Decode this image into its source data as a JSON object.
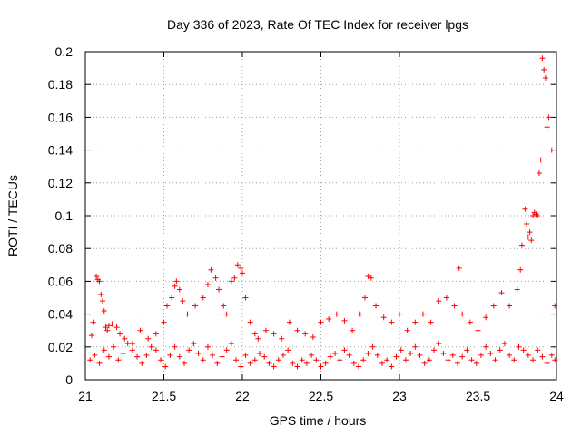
{
  "chart_data": {
    "type": "scatter",
    "title": "Day 336 of 2023, Rate Of TEC Index for receiver lpgs",
    "xlabel": "GPS time / hours",
    "ylabel": "ROTI / TECUs",
    "xlim": [
      21,
      24
    ],
    "ylim": [
      0,
      0.2
    ],
    "x_ticks": [
      "21",
      "21.5",
      "22",
      "22.5",
      "23",
      "23.5",
      "24"
    ],
    "y_ticks": [
      "0",
      "0.02",
      "0.04",
      "0.06",
      "0.08",
      "0.1",
      "0.12",
      "0.14",
      "0.16",
      "0.18",
      "0.2"
    ],
    "grid": true,
    "marker": "+",
    "color": "#ff0000",
    "series": [
      {
        "x": [
          21.04,
          21.05,
          21.07,
          21.08,
          21.09,
          21.1,
          21.11,
          21.12,
          21.13,
          21.14,
          21.15,
          21.17,
          21.2,
          21.22,
          21.25,
          21.3,
          21.35,
          21.4,
          21.45,
          21.5,
          21.52,
          21.55,
          21.57,
          21.58,
          21.6,
          21.62,
          21.65,
          21.7,
          21.75,
          21.78,
          21.8,
          21.83,
          21.85,
          21.88,
          21.9,
          21.93,
          21.95,
          21.97,
          21.99,
          22.0,
          22.02,
          22.05,
          22.08,
          22.1,
          22.15,
          22.2,
          22.25,
          22.3,
          22.35,
          22.4,
          22.45,
          22.5,
          22.55,
          22.6,
          22.65,
          22.7,
          22.75,
          22.78,
          22.8,
          22.82,
          22.85,
          22.9,
          22.95,
          23.0,
          23.05,
          23.1,
          23.15,
          23.2,
          23.25,
          23.3,
          23.35,
          23.38,
          23.4,
          23.45,
          23.5,
          23.55,
          23.6,
          23.65,
          23.7,
          23.75,
          23.77,
          23.78,
          23.8,
          23.81,
          23.82,
          23.83,
          23.84,
          23.85,
          23.86,
          23.87,
          23.88,
          23.89,
          23.9,
          23.91,
          23.92,
          23.93,
          23.94,
          23.95,
          23.97,
          23.99
        ],
        "y": [
          0.027,
          0.035,
          0.063,
          0.061,
          0.06,
          0.052,
          0.048,
          0.042,
          0.032,
          0.03,
          0.033,
          0.034,
          0.032,
          0.028,
          0.025,
          0.022,
          0.03,
          0.025,
          0.028,
          0.035,
          0.045,
          0.05,
          0.057,
          0.06,
          0.055,
          0.048,
          0.04,
          0.045,
          0.05,
          0.058,
          0.067,
          0.062,
          0.055,
          0.045,
          0.04,
          0.06,
          0.062,
          0.07,
          0.068,
          0.065,
          0.05,
          0.035,
          0.028,
          0.025,
          0.03,
          0.028,
          0.025,
          0.035,
          0.03,
          0.028,
          0.026,
          0.035,
          0.037,
          0.04,
          0.036,
          0.03,
          0.04,
          0.05,
          0.063,
          0.062,
          0.045,
          0.038,
          0.035,
          0.04,
          0.03,
          0.035,
          0.04,
          0.035,
          0.048,
          0.05,
          0.045,
          0.068,
          0.04,
          0.035,
          0.03,
          0.038,
          0.045,
          0.053,
          0.045,
          0.055,
          0.067,
          0.082,
          0.104,
          0.095,
          0.087,
          0.09,
          0.085,
          0.1,
          0.102,
          0.101,
          0.1,
          0.126,
          0.134,
          0.196,
          0.189,
          0.184,
          0.154,
          0.16,
          0.14,
          0.045
        ]
      },
      {
        "x": [
          21.03,
          21.06,
          21.09,
          21.12,
          21.15,
          21.18,
          21.21,
          21.24,
          21.27,
          21.3,
          21.33,
          21.36,
          21.39,
          21.42,
          21.45,
          21.48,
          21.51,
          21.54,
          21.57,
          21.6,
          21.63,
          21.66,
          21.69,
          21.72,
          21.75,
          21.78,
          21.81,
          21.84,
          21.87,
          21.9,
          21.93,
          21.96,
          21.99,
          22.02,
          22.05,
          22.08,
          22.11,
          22.14,
          22.17,
          22.2,
          22.23,
          22.26,
          22.29,
          22.32,
          22.35,
          22.38,
          22.41,
          22.44,
          22.47,
          22.5,
          22.53,
          22.56,
          22.59,
          22.62,
          22.65,
          22.68,
          22.71,
          22.74,
          22.77,
          22.8,
          22.83,
          22.86,
          22.89,
          22.92,
          22.95,
          22.98,
          23.01,
          23.04,
          23.07,
          23.1,
          23.13,
          23.16,
          23.19,
          23.22,
          23.25,
          23.28,
          23.31,
          23.34,
          23.37,
          23.4,
          23.43,
          23.46,
          23.49,
          23.52,
          23.55,
          23.58,
          23.61,
          23.64,
          23.67,
          23.7,
          23.73,
          23.76,
          23.79,
          23.82,
          23.85,
          23.88,
          23.91,
          23.94,
          23.97,
          23.99
        ],
        "y": [
          0.012,
          0.015,
          0.01,
          0.018,
          0.014,
          0.02,
          0.012,
          0.016,
          0.022,
          0.018,
          0.014,
          0.01,
          0.015,
          0.02,
          0.018,
          0.012,
          0.008,
          0.015,
          0.02,
          0.014,
          0.01,
          0.018,
          0.022,
          0.016,
          0.012,
          0.02,
          0.015,
          0.01,
          0.014,
          0.018,
          0.022,
          0.012,
          0.008,
          0.015,
          0.01,
          0.012,
          0.016,
          0.014,
          0.01,
          0.008,
          0.012,
          0.015,
          0.018,
          0.01,
          0.008,
          0.012,
          0.01,
          0.015,
          0.012,
          0.008,
          0.01,
          0.014,
          0.016,
          0.012,
          0.018,
          0.015,
          0.01,
          0.008,
          0.012,
          0.016,
          0.02,
          0.015,
          0.01,
          0.012,
          0.008,
          0.014,
          0.018,
          0.012,
          0.016,
          0.02,
          0.015,
          0.01,
          0.012,
          0.018,
          0.022,
          0.016,
          0.012,
          0.015,
          0.01,
          0.014,
          0.018,
          0.012,
          0.01,
          0.015,
          0.02,
          0.016,
          0.012,
          0.018,
          0.022,
          0.015,
          0.012,
          0.02,
          0.018,
          0.015,
          0.012,
          0.018,
          0.014,
          0.01,
          0.015,
          0.012
        ]
      }
    ]
  }
}
